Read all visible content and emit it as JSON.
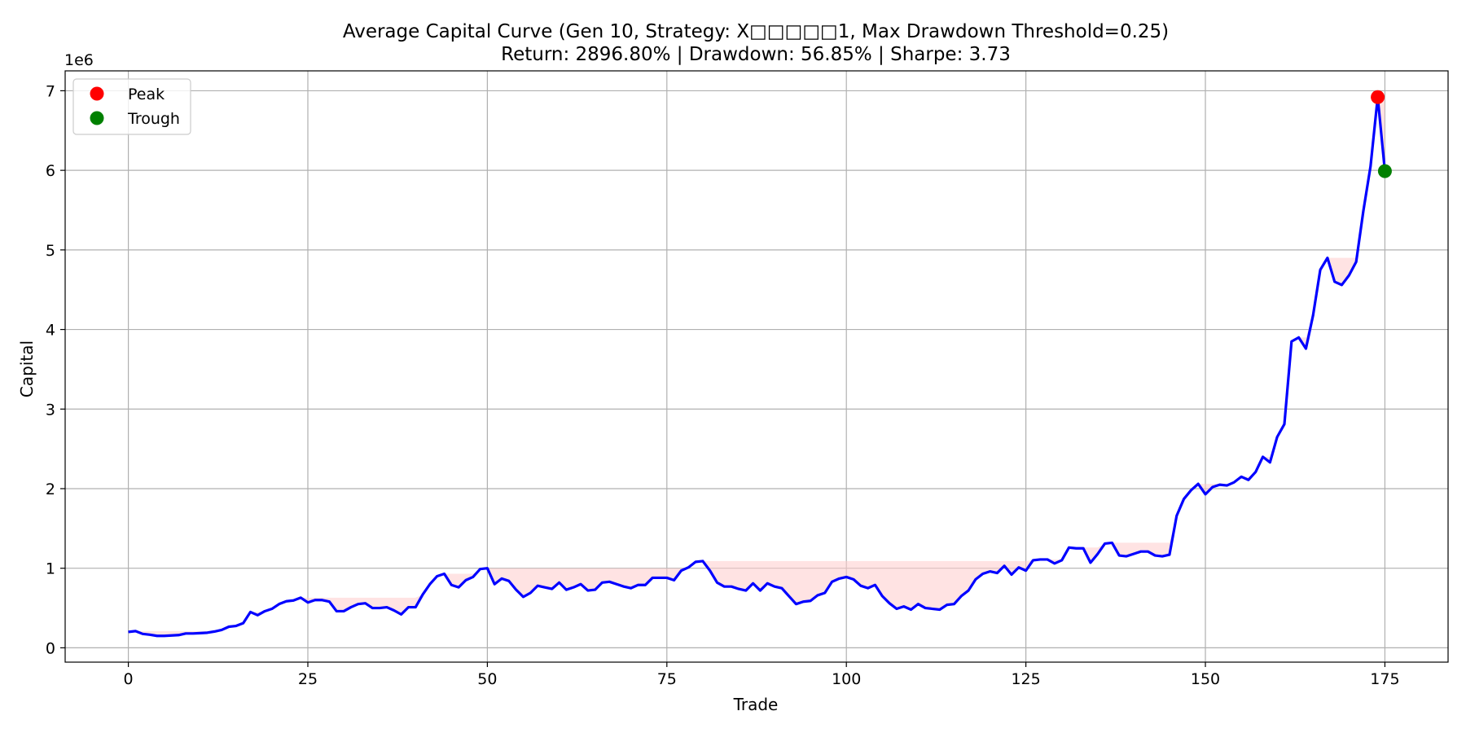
{
  "chart_data": {
    "type": "line",
    "title": "Average Capital Curve (Gen 10, Strategy: X□□□□□1, Max Drawdown Threshold=0.25)",
    "subtitle": "Return: 2896.80% | Drawdown: 56.85% | Sharpe: 3.73",
    "xlabel": "Trade",
    "ylabel": "Capital",
    "y_offset_label": "1e6",
    "y_scale": 1000000,
    "xlim": [
      -8.8,
      183.8
    ],
    "ylim": [
      -180000,
      7250000
    ],
    "xticks": [
      0,
      25,
      50,
      75,
      100,
      125,
      150,
      175
    ],
    "xtick_labels": [
      "0",
      "25",
      "50",
      "75",
      "100",
      "125",
      "150",
      "175"
    ],
    "yticks": [
      0,
      1000000,
      2000000,
      3000000,
      4000000,
      5000000,
      6000000,
      7000000
    ],
    "ytick_labels": [
      "0",
      "1",
      "2",
      "3",
      "4",
      "5",
      "6",
      "7"
    ],
    "grid": true,
    "legend_position": "upper-left",
    "legend": [
      {
        "label": "Peak",
        "color": "#ff0000"
      },
      {
        "label": "Trough",
        "color": "#008000"
      }
    ],
    "colors": {
      "line": "#0000ff",
      "drawdown_fill": "#ffcccc",
      "peak": "#ff0000",
      "trough": "#008000",
      "grid": "#b0b0b0"
    },
    "series": [
      {
        "values": [
          200000,
          210000,
          175000,
          165000,
          150000,
          150000,
          155000,
          160000,
          180000,
          180000,
          185000,
          190000,
          205000,
          225000,
          265000,
          275000,
          310000,
          450000,
          410000,
          460000,
          490000,
          550000,
          585000,
          595000,
          630000,
          570000,
          600000,
          600000,
          580000,
          460000,
          460000,
          510000,
          550000,
          560000,
          500000,
          500000,
          510000,
          470000,
          420000,
          510000,
          510000,
          670000,
          800000,
          900000,
          930000,
          790000,
          760000,
          850000,
          890000,
          990000,
          1000000,
          800000,
          870000,
          840000,
          730000,
          640000,
          690000,
          780000,
          760000,
          740000,
          820000,
          730000,
          760000,
          800000,
          720000,
          730000,
          820000,
          830000,
          800000,
          770000,
          750000,
          790000,
          790000,
          880000,
          880000,
          880000,
          850000,
          970000,
          1010000,
          1080000,
          1090000,
          970000,
          820000,
          770000,
          770000,
          740000,
          720000,
          810000,
          720000,
          810000,
          770000,
          750000,
          650000,
          550000,
          580000,
          590000,
          660000,
          690000,
          830000,
          870000,
          890000,
          860000,
          780000,
          750000,
          790000,
          650000,
          560000,
          490000,
          520000,
          480000,
          550000,
          500000,
          490000,
          480000,
          540000,
          550000,
          650000,
          720000,
          860000,
          930000,
          960000,
          940000,
          1030000,
          920000,
          1010000,
          970000,
          1100000,
          1110000,
          1110000,
          1060000,
          1100000,
          1260000,
          1250000,
          1250000,
          1070000,
          1180000,
          1310000,
          1320000,
          1160000,
          1150000,
          1180000,
          1210000,
          1210000,
          1160000,
          1150000,
          1170000,
          1660000,
          1870000,
          1980000,
          2060000,
          1930000,
          2020000,
          2050000,
          2040000,
          2080000,
          2150000,
          2110000,
          2210000,
          2400000,
          2330000,
          2650000,
          2810000,
          3850000,
          3900000,
          3760000,
          4180000,
          4750000,
          4900000,
          4600000,
          4560000,
          4680000,
          4850000,
          5490000,
          6050000,
          6920000,
          5990000
        ]
      }
    ],
    "peak": {
      "x": 174,
      "y": 6920000
    },
    "trough": {
      "x": 175,
      "y": 5990000
    }
  }
}
